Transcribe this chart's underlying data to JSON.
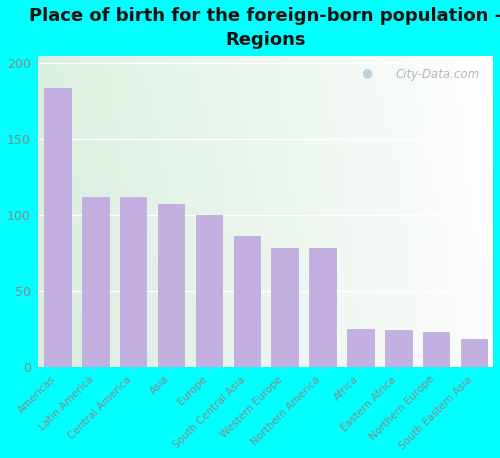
{
  "title": "Place of birth for the foreign-born population -\nRegions",
  "categories": [
    "Americas",
    "Latin America",
    "Central America",
    "Asia",
    "Europe",
    "South Central Asia",
    "Western Europe",
    "Northern America",
    "Africa",
    "Eastern Africa",
    "Northern Europe",
    "South Eastern Asia"
  ],
  "values": [
    184,
    112,
    112,
    107,
    100,
    86,
    78,
    78,
    25,
    24,
    23,
    18
  ],
  "bar_color": "#c4b0e0",
  "bar_edge_color": "#b8a8d8",
  "bg_corner_tl": "#f5f5f0",
  "bg_corner_tr": "#f0f0ea",
  "bg_corner_bl": "#d8f0d8",
  "bg_corner_br": "#e8f0e0",
  "outer_bg_color": "#00ffff",
  "yticks": [
    0,
    50,
    100,
    150,
    200
  ],
  "ylim": [
    0,
    205
  ],
  "title_fontsize": 13,
  "tick_label_fontsize": 7.5,
  "ytick_fontsize": 9,
  "watermark_text": "City-Data.com",
  "grid_color": "#e8e8e8",
  "tick_color": "#888888"
}
